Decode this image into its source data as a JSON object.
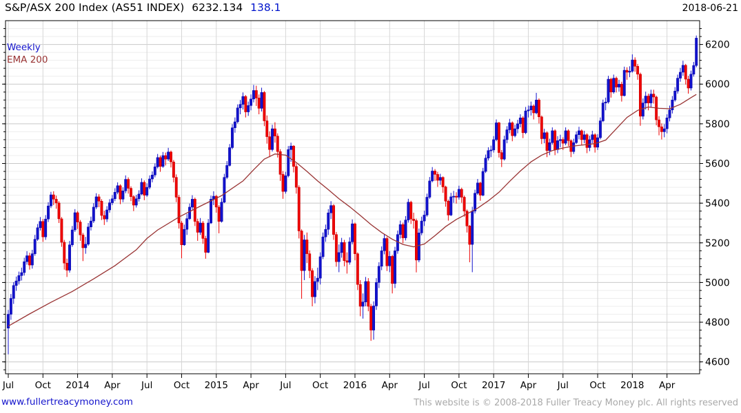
{
  "header": {
    "title_main": "S&P/ASX 200 Index (AS51 INDEX)",
    "last_price": "6232.134",
    "change": "138.1",
    "date": "2018-06-21"
  },
  "legend": {
    "series_label": "Weekly",
    "overlay_label": "EMA 200"
  },
  "footer": {
    "site_link": "www.fullertreacymoney.com",
    "copyright": "This website is © 2008-2018 Fuller Treacy Money plc. All rights reserved"
  },
  "colors": {
    "up_candle": "#1212cc",
    "up_stroke": "#0000a8",
    "down_candle": "#ee0000",
    "down_stroke": "#c40000",
    "ema_line": "#993333",
    "grid_major": "#c8c8c8",
    "grid_minor": "#ededed",
    "grid_vertical": "#d6d6d6",
    "axis": "#000000",
    "change_text": "#0014cc"
  },
  "chart_data": {
    "type": "candlestick",
    "timeframe": "weekly",
    "title": "S&P/ASX 200 Index (AS51 INDEX)",
    "ylim": [
      4540,
      6320
    ],
    "y_ticks": [
      4600,
      4800,
      5000,
      5200,
      5400,
      5600,
      5800,
      6000,
      6200
    ],
    "y_minor_step": 40,
    "y_axis_side": "right",
    "grid": true,
    "x_tick_labels": [
      "Jul",
      "Oct",
      "2014",
      "Apr",
      "Jul",
      "Oct",
      "2015",
      "Apr",
      "Jul",
      "Oct",
      "2016",
      "Apr",
      "Jul",
      "Oct",
      "2017",
      "Apr",
      "Jul",
      "Oct",
      "2018",
      "Apr"
    ],
    "weeks_per_tick": 13,
    "first_open": 4770,
    "weeks_chl": [
      [
        4840,
        4862,
        4638
      ],
      [
        4920,
        4942,
        4812
      ],
      [
        4985,
        5002,
        4892
      ],
      [
        5008,
        5030,
        4958
      ],
      [
        5035,
        5055,
        4990
      ],
      [
        5050,
        5075,
        5010
      ],
      [
        5105,
        5125,
        5035
      ],
      [
        5135,
        5158,
        5090
      ],
      [
        5088,
        5150,
        5065
      ],
      [
        5145,
        5165,
        5070
      ],
      [
        5218,
        5240,
        5135
      ],
      [
        5276,
        5295,
        5210
      ],
      [
        5308,
        5330,
        5262
      ],
      [
        5230,
        5320,
        5205
      ],
      [
        5320,
        5340,
        5215
      ],
      [
        5386,
        5405,
        5305
      ],
      [
        5442,
        5457,
        5375
      ],
      [
        5420,
        5460,
        5390
      ],
      [
        5401,
        5438,
        5372
      ],
      [
        5321,
        5410,
        5300
      ],
      [
        5203,
        5330,
        5180
      ],
      [
        5098,
        5215,
        5065
      ],
      [
        5062,
        5120,
        5028
      ],
      [
        5190,
        5210,
        5050
      ],
      [
        5265,
        5285,
        5180
      ],
      [
        5352,
        5370,
        5255
      ],
      [
        5305,
        5360,
        5270
      ],
      [
        5240,
        5315,
        5210
      ],
      [
        5175,
        5250,
        5108
      ],
      [
        5193,
        5230,
        5145
      ],
      [
        5280,
        5300,
        5185
      ],
      [
        5310,
        5332,
        5262
      ],
      [
        5380,
        5400,
        5300
      ],
      [
        5432,
        5450,
        5370
      ],
      [
        5410,
        5445,
        5380
      ],
      [
        5338,
        5420,
        5315
      ],
      [
        5320,
        5362,
        5290
      ],
      [
        5366,
        5385,
        5305
      ],
      [
        5402,
        5420,
        5352
      ],
      [
        5422,
        5441,
        5390
      ],
      [
        5455,
        5475,
        5410
      ],
      [
        5488,
        5505,
        5445
      ],
      [
        5420,
        5495,
        5395
      ],
      [
        5462,
        5480,
        5405
      ],
      [
        5520,
        5540,
        5450
      ],
      [
        5475,
        5530,
        5448
      ],
      [
        5433,
        5485,
        5410
      ],
      [
        5390,
        5440,
        5360
      ],
      [
        5422,
        5442,
        5378
      ],
      [
        5446,
        5465,
        5408
      ],
      [
        5505,
        5525,
        5440
      ],
      [
        5440,
        5515,
        5415
      ],
      [
        5480,
        5500,
        5432
      ],
      [
        5522,
        5540,
        5470
      ],
      [
        5542,
        5560,
        5505
      ],
      [
        5583,
        5600,
        5530
      ],
      [
        5630,
        5648,
        5575
      ],
      [
        5585,
        5640,
        5558
      ],
      [
        5640,
        5658,
        5578
      ],
      [
        5622,
        5655,
        5590
      ],
      [
        5658,
        5679,
        5612
      ],
      [
        5608,
        5665,
        5580
      ],
      [
        5530,
        5618,
        5505
      ],
      [
        5430,
        5545,
        5405
      ],
      [
        5300,
        5442,
        5272
      ],
      [
        5190,
        5310,
        5122
      ],
      [
        5268,
        5292,
        5185
      ],
      [
        5322,
        5345,
        5240
      ],
      [
        5380,
        5398,
        5315
      ],
      [
        5420,
        5440,
        5368
      ],
      [
        5308,
        5428,
        5285
      ],
      [
        5253,
        5322,
        5210
      ],
      [
        5300,
        5325,
        5240
      ],
      [
        5222,
        5310,
        5195
      ],
      [
        5152,
        5235,
        5120
      ],
      [
        5300,
        5320,
        5148
      ],
      [
        5420,
        5438,
        5295
      ],
      [
        5435,
        5460,
        5390
      ],
      [
        5380,
        5442,
        5352
      ],
      [
        5308,
        5390,
        5248
      ],
      [
        5405,
        5425,
        5302
      ],
      [
        5530,
        5548,
        5400
      ],
      [
        5590,
        5612,
        5522
      ],
      [
        5680,
        5698,
        5585
      ],
      [
        5780,
        5798,
        5672
      ],
      [
        5810,
        5832,
        5755
      ],
      [
        5880,
        5898,
        5802
      ],
      [
        5898,
        5920,
        5848
      ],
      [
        5938,
        5958,
        5872
      ],
      [
        5860,
        5945,
        5832
      ],
      [
        5892,
        5912,
        5840
      ],
      [
        5925,
        5948,
        5868
      ],
      [
        5968,
        5996,
        5908
      ],
      [
        5930,
        5992,
        5890
      ],
      [
        5878,
        5948,
        5848
      ],
      [
        5958,
        5982,
        5862
      ],
      [
        5815,
        5965,
        5788
      ],
      [
        5735,
        5842,
        5700
      ],
      [
        5670,
        5762,
        5632
      ],
      [
        5775,
        5795,
        5660
      ],
      [
        5738,
        5808,
        5705
      ],
      [
        5660,
        5752,
        5630
      ],
      [
        5545,
        5672,
        5512
      ],
      [
        5459,
        5562,
        5422
      ],
      [
        5538,
        5558,
        5448
      ],
      [
        5670,
        5688,
        5530
      ],
      [
        5688,
        5705,
        5608
      ],
      [
        5585,
        5692,
        5555
      ],
      [
        5480,
        5598,
        5448
      ],
      [
        5260,
        5490,
        5222
      ],
      [
        5060,
        5268,
        4918
      ],
      [
        5215,
        5240,
        5012
      ],
      [
        5145,
        5252,
        5098
      ],
      [
        5060,
        5162,
        5022
      ],
      [
        4928,
        5072,
        4880
      ],
      [
        5005,
        5032,
        4895
      ],
      [
        5022,
        5075,
        4962
      ],
      [
        5130,
        5152,
        4990
      ],
      [
        5230,
        5252,
        5118
      ],
      [
        5268,
        5292,
        5205
      ],
      [
        5351,
        5370,
        5240
      ],
      [
        5388,
        5410,
        5320
      ],
      [
        5242,
        5395,
        5215
      ],
      [
        5105,
        5255,
        5080
      ],
      [
        5151,
        5192,
        5052
      ],
      [
        5202,
        5225,
        5125
      ],
      [
        5110,
        5215,
        5082
      ],
      [
        5102,
        5152,
        5045
      ],
      [
        5205,
        5228,
        5090
      ],
      [
        5296,
        5318,
        5192
      ],
      [
        5145,
        5302,
        5112
      ],
      [
        4990,
        5152,
        4962
      ],
      [
        4880,
        5012,
        4830
      ],
      [
        4902,
        4945,
        4818
      ],
      [
        5005,
        5028,
        4880
      ],
      [
        4880,
        5022,
        4855
      ],
      [
        4760,
        4892,
        4706
      ],
      [
        4882,
        4905,
        4712
      ],
      [
        5000,
        5022,
        4862
      ],
      [
        5082,
        5102,
        4972
      ],
      [
        5160,
        5182,
        5062
      ],
      [
        5222,
        5242,
        5142
      ],
      [
        5084,
        5230,
        5058
      ],
      [
        5132,
        5158,
        5052
      ],
      [
        4995,
        5140,
        4945
      ],
      [
        5160,
        5180,
        4972
      ],
      [
        5242,
        5262,
        5145
      ],
      [
        5292,
        5312,
        5222
      ],
      [
        5225,
        5302,
        5198
      ],
      [
        5315,
        5335,
        5212
      ],
      [
        5405,
        5422,
        5302
      ],
      [
        5320,
        5412,
        5295
      ],
      [
        5312,
        5352,
        5272
      ],
      [
        5113,
        5322,
        5051
      ],
      [
        5250,
        5272,
        5102
      ],
      [
        5310,
        5332,
        5238
      ],
      [
        5340,
        5362,
        5285
      ],
      [
        5430,
        5448,
        5332
      ],
      [
        5512,
        5532,
        5422
      ],
      [
        5562,
        5582,
        5505
      ],
      [
        5545,
        5572,
        5512
      ],
      [
        5515,
        5558,
        5482
      ],
      [
        5530,
        5548,
        5492
      ],
      [
        5482,
        5535,
        5452
      ],
      [
        5410,
        5488,
        5382
      ],
      [
        5340,
        5418,
        5312
      ],
      [
        5432,
        5452,
        5335
      ],
      [
        5435,
        5462,
        5402
      ],
      [
        5430,
        5455,
        5398
      ],
      [
        5470,
        5488,
        5418
      ],
      [
        5430,
        5478,
        5402
      ],
      [
        5360,
        5438,
        5332
      ],
      [
        5285,
        5368,
        5252
      ],
      [
        5192,
        5290,
        5102
      ],
      [
        5360,
        5382,
        5052
      ],
      [
        5450,
        5468,
        5348
      ],
      [
        5502,
        5522,
        5442
      ],
      [
        5440,
        5508,
        5412
      ],
      [
        5560,
        5578,
        5435
      ],
      [
        5627,
        5645,
        5552
      ],
      [
        5665,
        5682,
        5615
      ],
      [
        5668,
        5690,
        5632
      ],
      [
        5720,
        5738,
        5655
      ],
      [
        5805,
        5822,
        5712
      ],
      [
        5655,
        5810,
        5630
      ],
      [
        5622,
        5668,
        5582
      ],
      [
        5720,
        5740,
        5615
      ],
      [
        5770,
        5788,
        5702
      ],
      [
        5805,
        5825,
        5752
      ],
      [
        5740,
        5812,
        5712
      ],
      [
        5775,
        5795,
        5732
      ],
      [
        5800,
        5820,
        5752
      ],
      [
        5830,
        5848,
        5782
      ],
      [
        5755,
        5838,
        5728
      ],
      [
        5865,
        5885,
        5748
      ],
      [
        5870,
        5892,
        5832
      ],
      [
        5890,
        5912,
        5842
      ],
      [
        5855,
        5898,
        5822
      ],
      [
        5920,
        5956,
        5848
      ],
      [
        5835,
        5928,
        5802
      ],
      [
        5725,
        5842,
        5698
      ],
      [
        5755,
        5775,
        5702
      ],
      [
        5665,
        5762,
        5632
      ],
      [
        5705,
        5725,
        5642
      ],
      [
        5765,
        5782,
        5695
      ],
      [
        5670,
        5772,
        5642
      ],
      [
        5715,
        5738,
        5652
      ],
      [
        5721,
        5745,
        5682
      ],
      [
        5702,
        5732,
        5668
      ],
      [
        5765,
        5782,
        5692
      ],
      [
        5715,
        5772,
        5688
      ],
      [
        5660,
        5722,
        5632
      ],
      [
        5705,
        5725,
        5648
      ],
      [
        5745,
        5762,
        5698
      ],
      [
        5765,
        5785,
        5722
      ],
      [
        5720,
        5772,
        5692
      ],
      [
        5745,
        5765,
        5702
      ],
      [
        5680,
        5752,
        5652
      ],
      [
        5720,
        5740,
        5662
      ],
      [
        5745,
        5765,
        5702
      ],
      [
        5682,
        5752,
        5655
      ],
      [
        5730,
        5748,
        5668
      ],
      [
        5815,
        5832,
        5722
      ],
      [
        5905,
        5922,
        5808
      ],
      [
        5910,
        5932,
        5868
      ],
      [
        6025,
        6042,
        5902
      ],
      [
        5960,
        6032,
        5932
      ],
      [
        6030,
        6048,
        5952
      ],
      [
        5985,
        6038,
        5958
      ],
      [
        6000,
        6022,
        5962
      ],
      [
        5942,
        6012,
        5912
      ],
      [
        6070,
        6088,
        5938
      ],
      [
        6060,
        6085,
        6022
      ],
      [
        6065,
        6090,
        6035
      ],
      [
        6122,
        6150,
        6058
      ],
      [
        6090,
        6135,
        6062
      ],
      [
        6050,
        6102,
        6022
      ],
      [
        5838,
        6058,
        5790
      ],
      [
        5905,
        5928,
        5822
      ],
      [
        5940,
        5962,
        5872
      ],
      [
        5905,
        5952,
        5868
      ],
      [
        5950,
        5972,
        5882
      ],
      [
        5935,
        5972,
        5902
      ],
      [
        5820,
        5942,
        5792
      ],
      [
        5785,
        5838,
        5742
      ],
      [
        5760,
        5802,
        5721
      ],
      [
        5775,
        5798,
        5732
      ],
      [
        5830,
        5848,
        5752
      ],
      [
        5870,
        5892,
        5812
      ],
      [
        5920,
        5940,
        5852
      ],
      [
        5965,
        5985,
        5912
      ],
      [
        6030,
        6048,
        5952
      ],
      [
        6060,
        6082,
        6012
      ],
      [
        6095,
        6118,
        6042
      ],
      [
        6025,
        6102,
        5998
      ],
      [
        5980,
        6042,
        5952
      ],
      [
        6050,
        6068,
        5968
      ],
      [
        6094,
        6112,
        6038
      ],
      [
        6232,
        6245,
        6085
      ]
    ],
    "ema200": {
      "period": 200,
      "anchors": [
        [
          0,
          4780
        ],
        [
          8,
          4842
        ],
        [
          16,
          4900
        ],
        [
          24,
          4955
        ],
        [
          32,
          5018
        ],
        [
          40,
          5085
        ],
        [
          48,
          5165
        ],
        [
          52,
          5222
        ],
        [
          56,
          5265
        ],
        [
          64,
          5330
        ],
        [
          72,
          5385
        ],
        [
          80,
          5438
        ],
        [
          88,
          5512
        ],
        [
          92,
          5568
        ],
        [
          96,
          5622
        ],
        [
          100,
          5648
        ],
        [
          104,
          5642
        ],
        [
          108,
          5605
        ],
        [
          112,
          5560
        ],
        [
          116,
          5512
        ],
        [
          120,
          5468
        ],
        [
          124,
          5422
        ],
        [
          128,
          5382
        ],
        [
          132,
          5338
        ],
        [
          136,
          5292
        ],
        [
          140,
          5252
        ],
        [
          144,
          5218
        ],
        [
          148,
          5192
        ],
        [
          152,
          5180
        ],
        [
          156,
          5194
        ],
        [
          160,
          5236
        ],
        [
          164,
          5282
        ],
        [
          168,
          5318
        ],
        [
          172,
          5346
        ],
        [
          176,
          5375
        ],
        [
          180,
          5412
        ],
        [
          184,
          5455
        ],
        [
          188,
          5510
        ],
        [
          192,
          5562
        ],
        [
          196,
          5608
        ],
        [
          200,
          5642
        ],
        [
          204,
          5665
        ],
        [
          208,
          5678
        ],
        [
          212,
          5688
        ],
        [
          216,
          5694
        ],
        [
          220,
          5700
        ],
        [
          224,
          5718
        ],
        [
          228,
          5775
        ],
        [
          232,
          5832
        ],
        [
          236,
          5868
        ],
        [
          240,
          5885
        ],
        [
          244,
          5878
        ],
        [
          248,
          5876
        ],
        [
          252,
          5898
        ],
        [
          256,
          5932
        ],
        [
          258,
          5948
        ]
      ]
    }
  }
}
